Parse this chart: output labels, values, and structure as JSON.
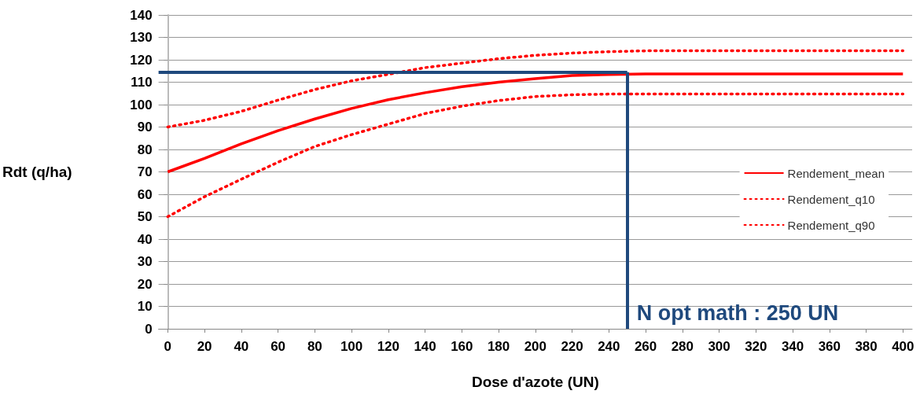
{
  "chart_data": {
    "type": "line",
    "xlabel": "Dose d'azote (UN)",
    "ylabel": "Rdt (q/ha)",
    "x": [
      0,
      20,
      40,
      60,
      80,
      100,
      120,
      140,
      160,
      180,
      200,
      220,
      240,
      260,
      280,
      300,
      340,
      400
    ],
    "series": [
      {
        "name": "Rendement_mean",
        "color": "#ff0000",
        "line_style": "solid",
        "values": [
          70,
          76,
          82.5,
          88.4,
          93.6,
          98.3,
          102.2,
          105.3,
          108,
          110,
          111.6,
          113,
          113.4,
          113.7,
          113.7,
          113.7,
          113.7,
          113.7
        ]
      },
      {
        "name": "Rendement_q10",
        "color": "#ff0000",
        "line_style": "dotted",
        "values": [
          90,
          93,
          97,
          102,
          106.7,
          110.6,
          113.5,
          116.5,
          118.5,
          120.5,
          122,
          123,
          123.6,
          124,
          124,
          124,
          124,
          124
        ]
      },
      {
        "name": "Rendement_q90",
        "color": "#ff0000",
        "line_style": "dotted",
        "values": [
          50,
          58.9,
          66.7,
          74.3,
          81.3,
          86.6,
          91.3,
          96,
          99.3,
          101.8,
          103.6,
          104.4,
          104.7,
          104.7,
          104.7,
          104.7,
          104.7,
          104.7
        ]
      }
    ],
    "xlim": [
      -5,
      405
    ],
    "xticks": [
      0,
      20,
      40,
      60,
      80,
      100,
      120,
      140,
      160,
      180,
      200,
      220,
      240,
      260,
      280,
      300,
      320,
      340,
      360,
      380,
      400
    ],
    "ylim": [
      0,
      140
    ],
    "yticks": [
      0,
      10,
      20,
      30,
      40,
      50,
      60,
      70,
      80,
      90,
      100,
      110,
      120,
      130,
      140
    ],
    "ref_lines": [
      {
        "axis": "y",
        "value": 114.5,
        "color": "#1f497d"
      },
      {
        "axis": "x",
        "value": 250,
        "color": "#1f497d"
      }
    ],
    "annotations": [
      {
        "text": "N opt math : 250 UN",
        "x": 250,
        "y": 0
      }
    ],
    "grid": "y",
    "legend": "right",
    "marker": "none"
  }
}
